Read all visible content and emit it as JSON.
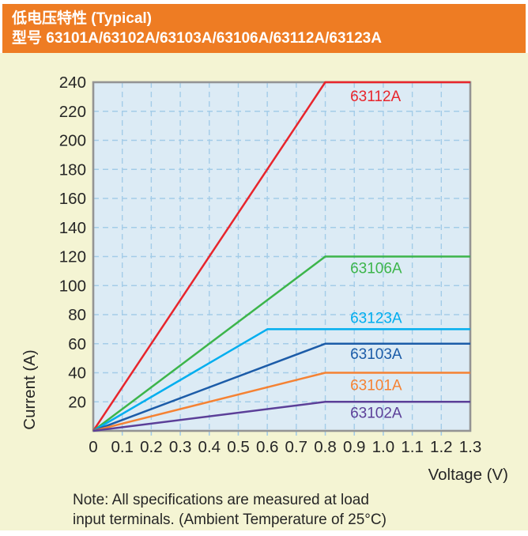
{
  "header": {
    "title_line1": "低电压特性 (Typical)",
    "title_line2": "型号 63101A/63102A/63103A/63106A/63112A/63123A",
    "bg_color": "#EE7C23",
    "text_color": "#FFFFFF"
  },
  "page_bg_color": "#F4F4D3",
  "note": {
    "line1": "Note: All specifications are measured at load",
    "line2": "input terminals. (Ambient Temperature of 25°C)"
  },
  "chart_data": {
    "type": "line",
    "title": "低电压特性 (Typical)",
    "xlabel": "Voltage (V)",
    "ylabel": "Current (A)",
    "xlim": [
      0,
      1.3
    ],
    "ylim": [
      0,
      240
    ],
    "x_ticks": [
      "0",
      "0.1",
      "0.2",
      "0.3",
      "0.4",
      "0.5",
      "0.6",
      "0.7",
      "0.8",
      "0.9",
      "1.0",
      "1.1",
      "1.2",
      "1.3"
    ],
    "y_ticks": [
      20,
      40,
      60,
      80,
      100,
      120,
      140,
      160,
      180,
      200,
      220,
      240
    ],
    "grid": "dashed gridlines every 0.1 V and every 20 A",
    "legend_position": "labels next to lines inside plot",
    "plot_bg": "#DCEBF5",
    "grid_color": "#A3CCE8",
    "frame_color": "#949494",
    "text_color": "#262626",
    "series_label_x_v": 0.886,
    "series": [
      {
        "name": "63112A",
        "color": "#E8252C",
        "points": [
          [
            0,
            0
          ],
          [
            0.8,
            240
          ],
          [
            1.3,
            240
          ]
        ],
        "label_dy": 24
      },
      {
        "name": "63106A",
        "color": "#3CB54B",
        "points": [
          [
            0,
            0
          ],
          [
            0.8,
            120
          ],
          [
            1.3,
            120
          ]
        ],
        "label_dy": 21
      },
      {
        "name": "63123A",
        "color": "#00AEEF",
        "points": [
          [
            0,
            0
          ],
          [
            0.6,
            70
          ],
          [
            1.3,
            70
          ]
        ],
        "label_dy": -8
      },
      {
        "name": "63103A",
        "color": "#1C5CA8",
        "points": [
          [
            0,
            0
          ],
          [
            0.8,
            60
          ],
          [
            1.3,
            60
          ]
        ],
        "label_dy": 19
      },
      {
        "name": "63101A",
        "color": "#F58233",
        "points": [
          [
            0,
            0
          ],
          [
            0.8,
            40
          ],
          [
            1.3,
            40
          ]
        ],
        "label_dy": 22
      },
      {
        "name": "63102A",
        "color": "#5B3F98",
        "points": [
          [
            0,
            0
          ],
          [
            0.8,
            20
          ],
          [
            1.3,
            20
          ]
        ],
        "label_dy": 20
      }
    ]
  }
}
